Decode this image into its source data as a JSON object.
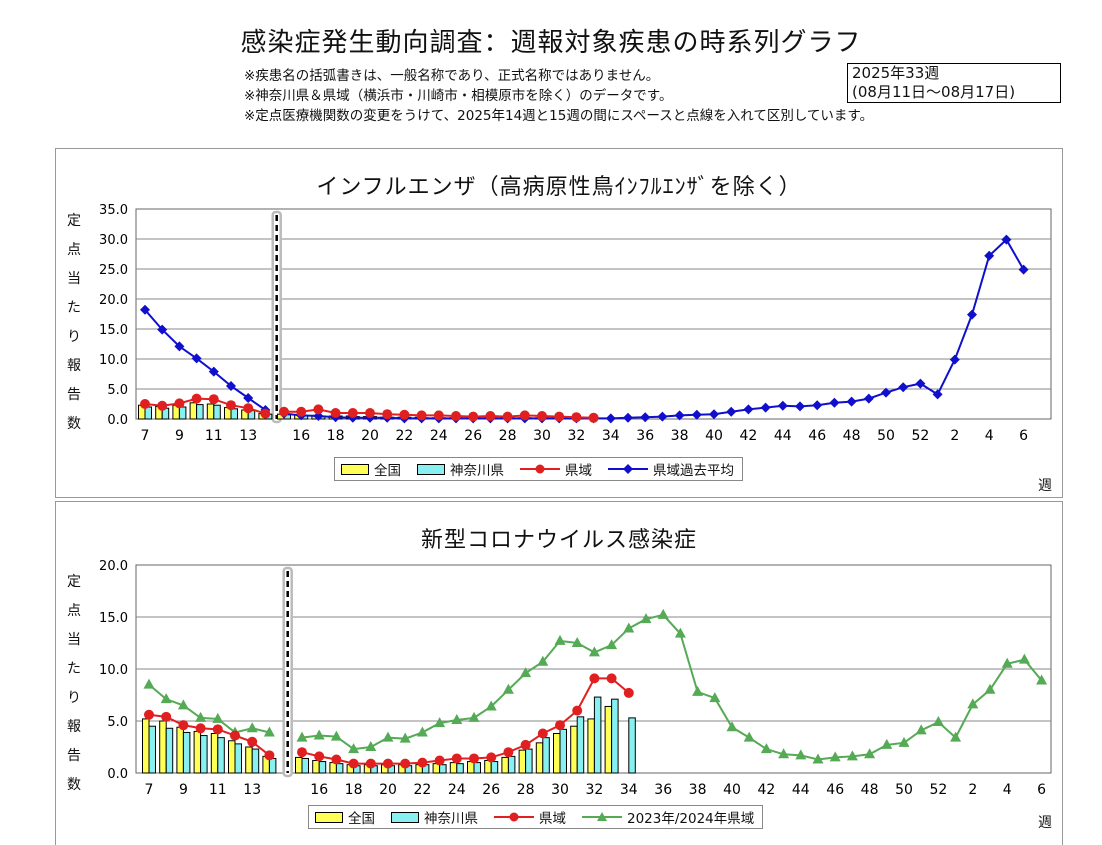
{
  "header": {
    "title": "感染症発生動向調査：週報対象疾患の時系列グラフ",
    "notes": [
      "※疾患名の括弧書きは、一般名称であり、正式名称ではありません。",
      "※神奈川県＆県域（横浜市・川崎市・相模原市を除く）のデータです。",
      "※定点医療機関数の変更をうけて、2025年14週と15週の間にスペースと点線を入れて区別しています。"
    ],
    "week_box": [
      "2025年33週",
      "(08月11日～08月17日)"
    ]
  },
  "colors": {
    "national": "#ffff55",
    "kanagawa": "#88f0f0",
    "prefecture": "#e02020",
    "past_avg": "#1010cc",
    "last_season": "#55aa55",
    "gridline": "#888888"
  },
  "chart_data": [
    {
      "type": "bar",
      "title": "インフルエンザ（高病原性鳥ｲﾝﾌﾙｴﾝｻﾞを除く）",
      "ylabel": "定点当たり報告数",
      "xlabel": "週",
      "ylim": [
        0,
        35
      ],
      "yticks": [
        "0.0",
        "5.0",
        "10.0",
        "15.0",
        "20.0",
        "25.0",
        "30.0",
        "35.0"
      ],
      "grid": true,
      "legend_position": "bottom",
      "x_tick_labels": [
        "7",
        "9",
        "11",
        "13",
        "16",
        "18",
        "20",
        "22",
        "24",
        "26",
        "28",
        "30",
        "32",
        "34",
        "36",
        "38",
        "40",
        "42",
        "44",
        "46",
        "48",
        "50",
        "52",
        "2",
        "4",
        "6"
      ],
      "weeks_left": [
        7,
        8,
        9,
        10,
        11,
        12,
        13,
        14
      ],
      "weeks_right": [
        15,
        16,
        17,
        18,
        19,
        20,
        21,
        22,
        23,
        24,
        25,
        26,
        27,
        28,
        29,
        30,
        31,
        32,
        33,
        34,
        35,
        36,
        37,
        38,
        39,
        40,
        41,
        42,
        43,
        44,
        45,
        46,
        47,
        48,
        49,
        50,
        51,
        52,
        1,
        2,
        3,
        4,
        5,
        6
      ],
      "series": [
        {
          "name": "全国",
          "kind": "bar",
          "left": [
            2.3,
            2.1,
            2.3,
            2.7,
            2.5,
            1.9,
            1.5,
            0.9
          ],
          "right": [
            0.8,
            0.7,
            0.6,
            0.5,
            0.5,
            0.4,
            0.3,
            0.3,
            0.3,
            0.2,
            0.2,
            0.2,
            0.2,
            0.2,
            0.2,
            0.2,
            0.2,
            0.2
          ]
        },
        {
          "name": "神奈川県",
          "kind": "bar",
          "left": [
            2.0,
            1.8,
            2.0,
            2.4,
            2.3,
            1.7,
            1.4,
            0.8
          ],
          "right": [
            0.7,
            0.6,
            0.5,
            0.5,
            0.4,
            0.4,
            0.3,
            0.3,
            0.2,
            0.2,
            0.2,
            0.2,
            0.2,
            0.2,
            0.2,
            0.2,
            0.2,
            0.2
          ]
        },
        {
          "name": "県域",
          "kind": "line",
          "left": [
            2.5,
            2.2,
            2.6,
            3.4,
            3.3,
            2.3,
            1.8,
            0.9
          ],
          "right": [
            1.2,
            1.2,
            1.6,
            1.0,
            1.0,
            1.0,
            0.8,
            0.7,
            0.6,
            0.6,
            0.5,
            0.4,
            0.5,
            0.4,
            0.6,
            0.5,
            0.4,
            0.3,
            0.2
          ]
        },
        {
          "name": "県域過去平均",
          "kind": "line",
          "left": [
            18.2,
            14.9,
            12.1,
            10.1,
            7.9,
            5.5,
            3.5,
            1.5
          ],
          "right": [
            0.9,
            0.6,
            0.5,
            0.3,
            0.2,
            0.2,
            0.2,
            0.1,
            0.1,
            0.1,
            0.1,
            0.1,
            0.1,
            0.1,
            0.1,
            0.1,
            0.1,
            0.1,
            0.1,
            0.1,
            0.2,
            0.3,
            0.4,
            0.6,
            0.7,
            0.8,
            1.2,
            1.6,
            1.9,
            2.2,
            2.1,
            2.3,
            2.7,
            2.9,
            3.4,
            4.4,
            5.3,
            5.9,
            4.1,
            9.9,
            17.4,
            27.2,
            29.9,
            24.9
          ]
        }
      ]
    },
    {
      "type": "bar",
      "title": "新型コロナウイルス感染症",
      "ylabel": "定点当たり報告数",
      "xlabel": "週",
      "ylim": [
        0,
        20
      ],
      "yticks": [
        "0.0",
        "5.0",
        "10.0",
        "15.0",
        "20.0"
      ],
      "grid": true,
      "legend_position": "bottom",
      "x_tick_labels": [
        "7",
        "9",
        "11",
        "13",
        "16",
        "18",
        "20",
        "22",
        "24",
        "26",
        "28",
        "30",
        "32",
        "34",
        "36",
        "38",
        "40",
        "42",
        "44",
        "46",
        "48",
        "50",
        "52",
        "2",
        "4",
        "6"
      ],
      "weeks_left": [
        7,
        8,
        9,
        10,
        11,
        12,
        13,
        14
      ],
      "weeks_right": [
        15,
        16,
        17,
        18,
        19,
        20,
        21,
        22,
        23,
        24,
        25,
        26,
        27,
        28,
        29,
        30,
        31,
        32,
        33,
        34,
        35,
        36,
        37,
        38,
        39,
        40,
        41,
        42,
        43,
        44,
        45,
        46,
        47,
        48,
        49,
        50,
        51,
        52,
        1,
        2,
        3,
        4,
        5,
        6
      ],
      "series": [
        {
          "name": "全国",
          "kind": "bar",
          "left": [
            5.2,
            5.0,
            4.4,
            4.0,
            3.8,
            3.1,
            2.5,
            1.6
          ],
          "right": [
            1.5,
            1.2,
            1.0,
            0.8,
            0.8,
            0.8,
            0.8,
            0.8,
            0.9,
            1.0,
            1.1,
            1.2,
            1.5,
            2.2,
            2.9,
            3.8,
            4.5,
            5.2,
            6.4
          ]
        },
        {
          "name": "神奈川県",
          "kind": "bar",
          "left": [
            4.5,
            4.3,
            3.9,
            3.6,
            3.4,
            2.8,
            2.3,
            1.4
          ],
          "right": [
            1.4,
            1.1,
            0.9,
            0.7,
            0.7,
            0.7,
            0.7,
            0.8,
            0.8,
            0.9,
            1.0,
            1.1,
            1.6,
            2.3,
            3.4,
            4.2,
            5.4,
            7.3,
            7.1,
            5.3
          ]
        },
        {
          "name": "県域",
          "kind": "line",
          "left": [
            5.6,
            5.4,
            4.6,
            4.3,
            4.2,
            3.6,
            3.0,
            1.7
          ],
          "right": [
            2.0,
            1.6,
            1.3,
            0.9,
            0.9,
            0.9,
            0.9,
            1.0,
            1.2,
            1.4,
            1.4,
            1.5,
            2.0,
            2.7,
            3.8,
            4.6,
            6.0,
            9.1,
            9.1,
            7.7
          ]
        },
        {
          "name": "2023年/2024年県域",
          "kind": "line",
          "left": [
            8.5,
            7.1,
            6.5,
            5.3,
            5.2,
            3.9,
            4.3,
            3.9
          ],
          "right": [
            3.4,
            3.6,
            3.5,
            2.3,
            2.5,
            3.4,
            3.3,
            3.9,
            4.8,
            5.1,
            5.3,
            6.4,
            8.0,
            9.6,
            10.7,
            12.7,
            12.5,
            11.6,
            12.3,
            13.9,
            14.8,
            15.2,
            13.4,
            7.8,
            7.2,
            4.4,
            3.4,
            2.3,
            1.8,
            1.7,
            1.3,
            1.5,
            1.6,
            1.8,
            2.7,
            2.9,
            4.1,
            4.9,
            3.4,
            6.6,
            8.0,
            10.5,
            10.9,
            8.9
          ]
        }
      ]
    }
  ]
}
